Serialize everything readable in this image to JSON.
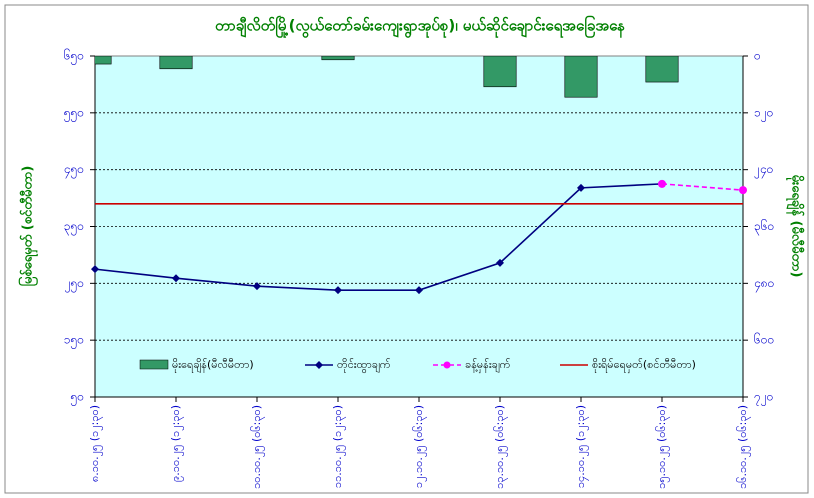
{
  "chart_data": {
    "type": "combo",
    "title": "တာချီလိတ်မြို့(လွယ်တော်ခမ်းကျေးရွာအုပ်စု)၊ မယ်ဆိုင်ချောင်းရေအခြေအနေ",
    "y_label": "မြစ်ရေမှတ် (စင်တီမီတာ)",
    "y2_label": "မိုးရေချိန် (မီလီမီတာ)",
    "categories": [
      "၈.၁၀.၂၅ (၁၂:၃၀)",
      "၉.၁၀.၂၅ (၁၂:၃၀)",
      "၁၀.၁၀.၂၅ (၀၆:၃၀)",
      "၁၁.၁၀.၂၅ (၁၂:၃၀)",
      "၁၂.၁၀.၂၅ (၀၆:၃၀)",
      "၁၃.၁၀.၂၅ (၀၆:၃၀)",
      "၁၄.၁၀.၂၅ (၁၂:၃၀)",
      "၁၅.၁၀.၂၅ (၀၆:၃၀)",
      "၁၆.၁၀.၂၅ (၀၆:၃၀)"
    ],
    "ylim": [
      50,
      650
    ],
    "yticks": [
      {
        "value": 50,
        "label": "၅၀"
      },
      {
        "value": 150,
        "label": "၁၅၀"
      },
      {
        "value": 250,
        "label": "၂၅၀"
      },
      {
        "value": 350,
        "label": "၃၅၀"
      },
      {
        "value": 450,
        "label": "၄၅၀"
      },
      {
        "value": 550,
        "label": "၅၅၀"
      },
      {
        "value": 650,
        "label": "၆၅၀"
      }
    ],
    "y2lim": [
      0,
      720
    ],
    "y2_inverted": true,
    "y2ticks": [
      {
        "value": 0,
        "label": "၀"
      },
      {
        "value": 120,
        "label": "၁၂၀"
      },
      {
        "value": 240,
        "label": "၂၄၀"
      },
      {
        "value": 360,
        "label": "၃၆၀"
      },
      {
        "value": 480,
        "label": "၄၈၀"
      },
      {
        "value": 600,
        "label": "၆၀၀"
      },
      {
        "value": 720,
        "label": "၇၂၀"
      }
    ],
    "grid": true,
    "legend": "bottom",
    "series": [
      {
        "name": "မိုးရေချိန်(မီလီမီတာ)",
        "type": "bar",
        "axis": "y2",
        "color": "#339966",
        "values": [
          17,
          27,
          0,
          8,
          0,
          65,
          87,
          55,
          null
        ]
      },
      {
        "name": "တိုင်းထွာချက်",
        "type": "line",
        "color": "#000080",
        "marker": "diamond",
        "values": [
          275,
          259,
          245,
          238,
          238,
          286,
          418,
          425,
          null
        ]
      },
      {
        "name": "ခန့်မှန်းချက်",
        "type": "line",
        "color": "#ff00ff",
        "dashed": true,
        "marker": "circle",
        "values": [
          null,
          null,
          null,
          null,
          null,
          null,
          null,
          425,
          414
        ]
      },
      {
        "name": "စိုးရိမ်ရေမှတ်(စင်တီမီတာ)",
        "type": "hline",
        "color": "#cc0000",
        "value": 390
      }
    ]
  }
}
